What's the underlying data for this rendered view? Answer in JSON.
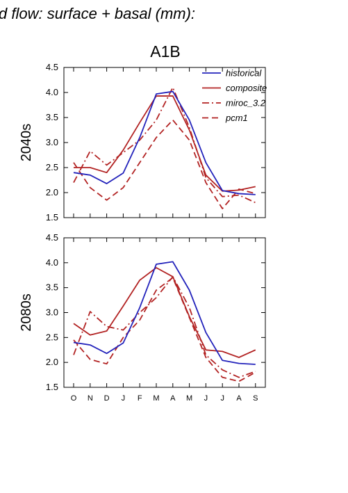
{
  "figure_title": "d flow: surface + basal (mm):",
  "scenario_title": "A1B",
  "colors": {
    "historical": "#2222bb",
    "projection": "#b22222",
    "axis": "#000000"
  },
  "chart_data": [
    {
      "type": "line",
      "ylabel": "2040s",
      "ylim": [
        1.5,
        4.5
      ],
      "yticks": [
        "1.5",
        "2.0",
        "2.5",
        "3.0",
        "3.5",
        "4.0",
        "4.5"
      ],
      "categories": [
        "O",
        "N",
        "D",
        "J",
        "F",
        "M",
        "A",
        "M",
        "J",
        "J",
        "A",
        "S"
      ],
      "legend_position": "top-right",
      "series": [
        {
          "name": "historical",
          "style": "solid",
          "color": "#2222bb",
          "values": [
            2.4,
            2.35,
            2.18,
            2.39,
            3.1,
            3.97,
            4.02,
            3.45,
            2.6,
            2.04,
            1.98,
            1.96
          ]
        },
        {
          "name": "composite",
          "style": "solid",
          "color": "#b22222",
          "values": [
            2.5,
            2.5,
            2.4,
            2.85,
            3.4,
            3.93,
            3.93,
            3.25,
            2.35,
            2.03,
            2.05,
            2.12
          ]
        },
        {
          "name": "miroc_3.2",
          "style": "dashdot",
          "color": "#b22222",
          "values": [
            2.2,
            2.83,
            2.55,
            2.8,
            3.05,
            3.45,
            4.1,
            3.3,
            2.3,
            1.92,
            1.95,
            1.8
          ]
        },
        {
          "name": "pcm1",
          "style": "dashed",
          "color": "#b22222",
          "values": [
            2.6,
            2.1,
            1.85,
            2.1,
            2.6,
            3.1,
            3.45,
            3.05,
            2.2,
            1.68,
            2.07,
            1.98
          ]
        }
      ]
    },
    {
      "type": "line",
      "ylabel": "2080s",
      "ylim": [
        1.5,
        4.5
      ],
      "yticks": [
        "1.5",
        "2.0",
        "2.5",
        "3.0",
        "3.5",
        "4.0",
        "4.5"
      ],
      "categories": [
        "O",
        "N",
        "D",
        "J",
        "F",
        "M",
        "A",
        "M",
        "J",
        "J",
        "A",
        "S"
      ],
      "series": [
        {
          "name": "historical",
          "style": "solid",
          "color": "#2222bb",
          "values": [
            2.4,
            2.35,
            2.18,
            2.39,
            3.1,
            3.97,
            4.02,
            3.45,
            2.6,
            2.04,
            1.98,
            1.96
          ]
        },
        {
          "name": "composite",
          "style": "solid",
          "color": "#b22222",
          "values": [
            2.78,
            2.55,
            2.63,
            3.13,
            3.65,
            3.9,
            3.72,
            2.92,
            2.25,
            2.22,
            2.1,
            2.25
          ]
        },
        {
          "name": "miroc_3.2",
          "style": "dashdot",
          "color": "#b22222",
          "values": [
            2.15,
            3.02,
            2.72,
            2.65,
            3.0,
            3.3,
            3.72,
            3.1,
            2.15,
            1.85,
            1.7,
            1.82
          ]
        },
        {
          "name": "pcm1",
          "style": "dashed",
          "color": "#b22222",
          "values": [
            2.45,
            2.06,
            1.97,
            2.5,
            2.85,
            3.45,
            3.7,
            2.9,
            2.1,
            1.7,
            1.62,
            1.8
          ]
        }
      ]
    }
  ]
}
